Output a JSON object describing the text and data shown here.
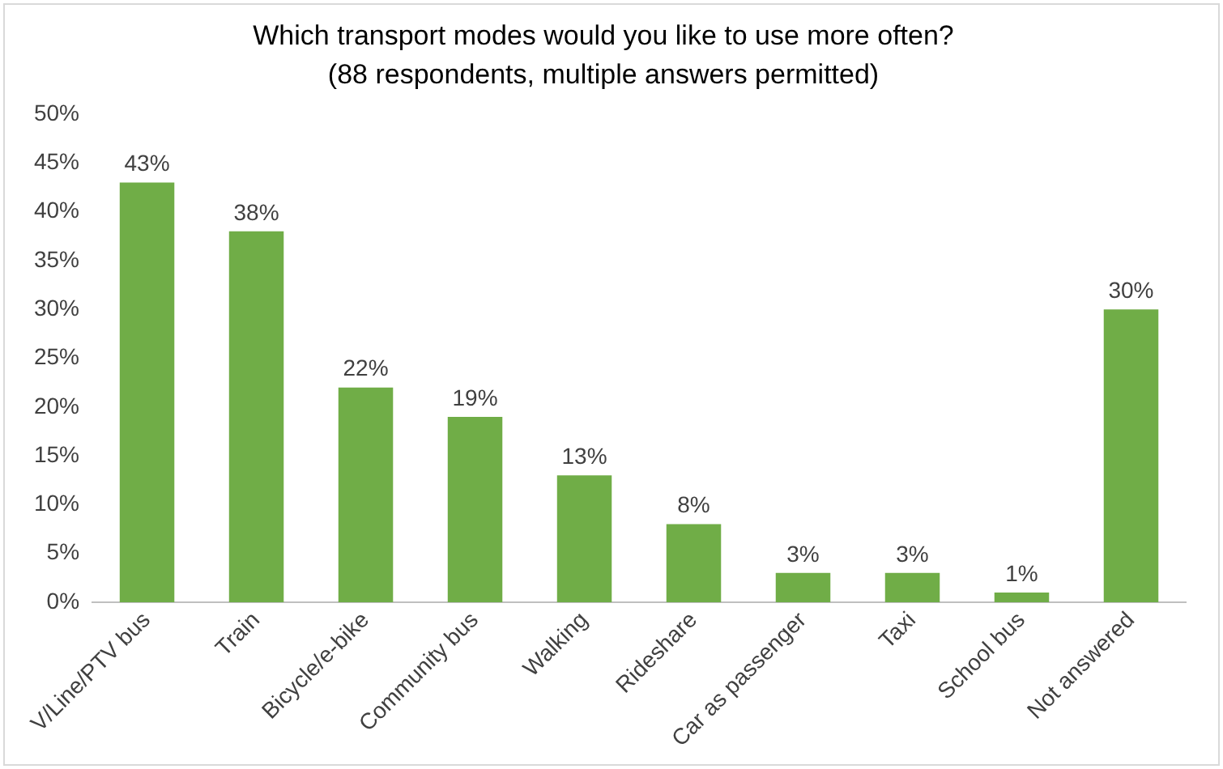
{
  "chart_data": {
    "type": "bar",
    "title": "Which transport modes would you like to use more often?",
    "subtitle": "(88 respondents, multiple answers permitted)",
    "categories": [
      "V/Line/PTV bus",
      "Train",
      "Bicycle/e-bike",
      "Community bus",
      "Walking",
      "Rideshare",
      "Car as passenger",
      "Taxi",
      "School bus",
      "Not answered"
    ],
    "values": [
      43,
      38,
      22,
      19,
      13,
      8,
      3,
      3,
      1,
      30
    ],
    "value_labels": [
      "43%",
      "38%",
      "22%",
      "19%",
      "13%",
      "8%",
      "3%",
      "3%",
      "1%",
      "30%"
    ],
    "color": "#70ad47",
    "ylim": [
      0,
      50
    ],
    "yticks": [
      {
        "value": 0,
        "label": "0%"
      },
      {
        "value": 5,
        "label": "5%"
      },
      {
        "value": 10,
        "label": "10%"
      },
      {
        "value": 15,
        "label": "15%"
      },
      {
        "value": 20,
        "label": "20%"
      },
      {
        "value": 25,
        "label": "25%"
      },
      {
        "value": 30,
        "label": "30%"
      },
      {
        "value": 35,
        "label": "35%"
      },
      {
        "value": 40,
        "label": "40%"
      },
      {
        "value": 45,
        "label": "45%"
      },
      {
        "value": 50,
        "label": "50%"
      }
    ],
    "grid": false,
    "legend": false
  }
}
